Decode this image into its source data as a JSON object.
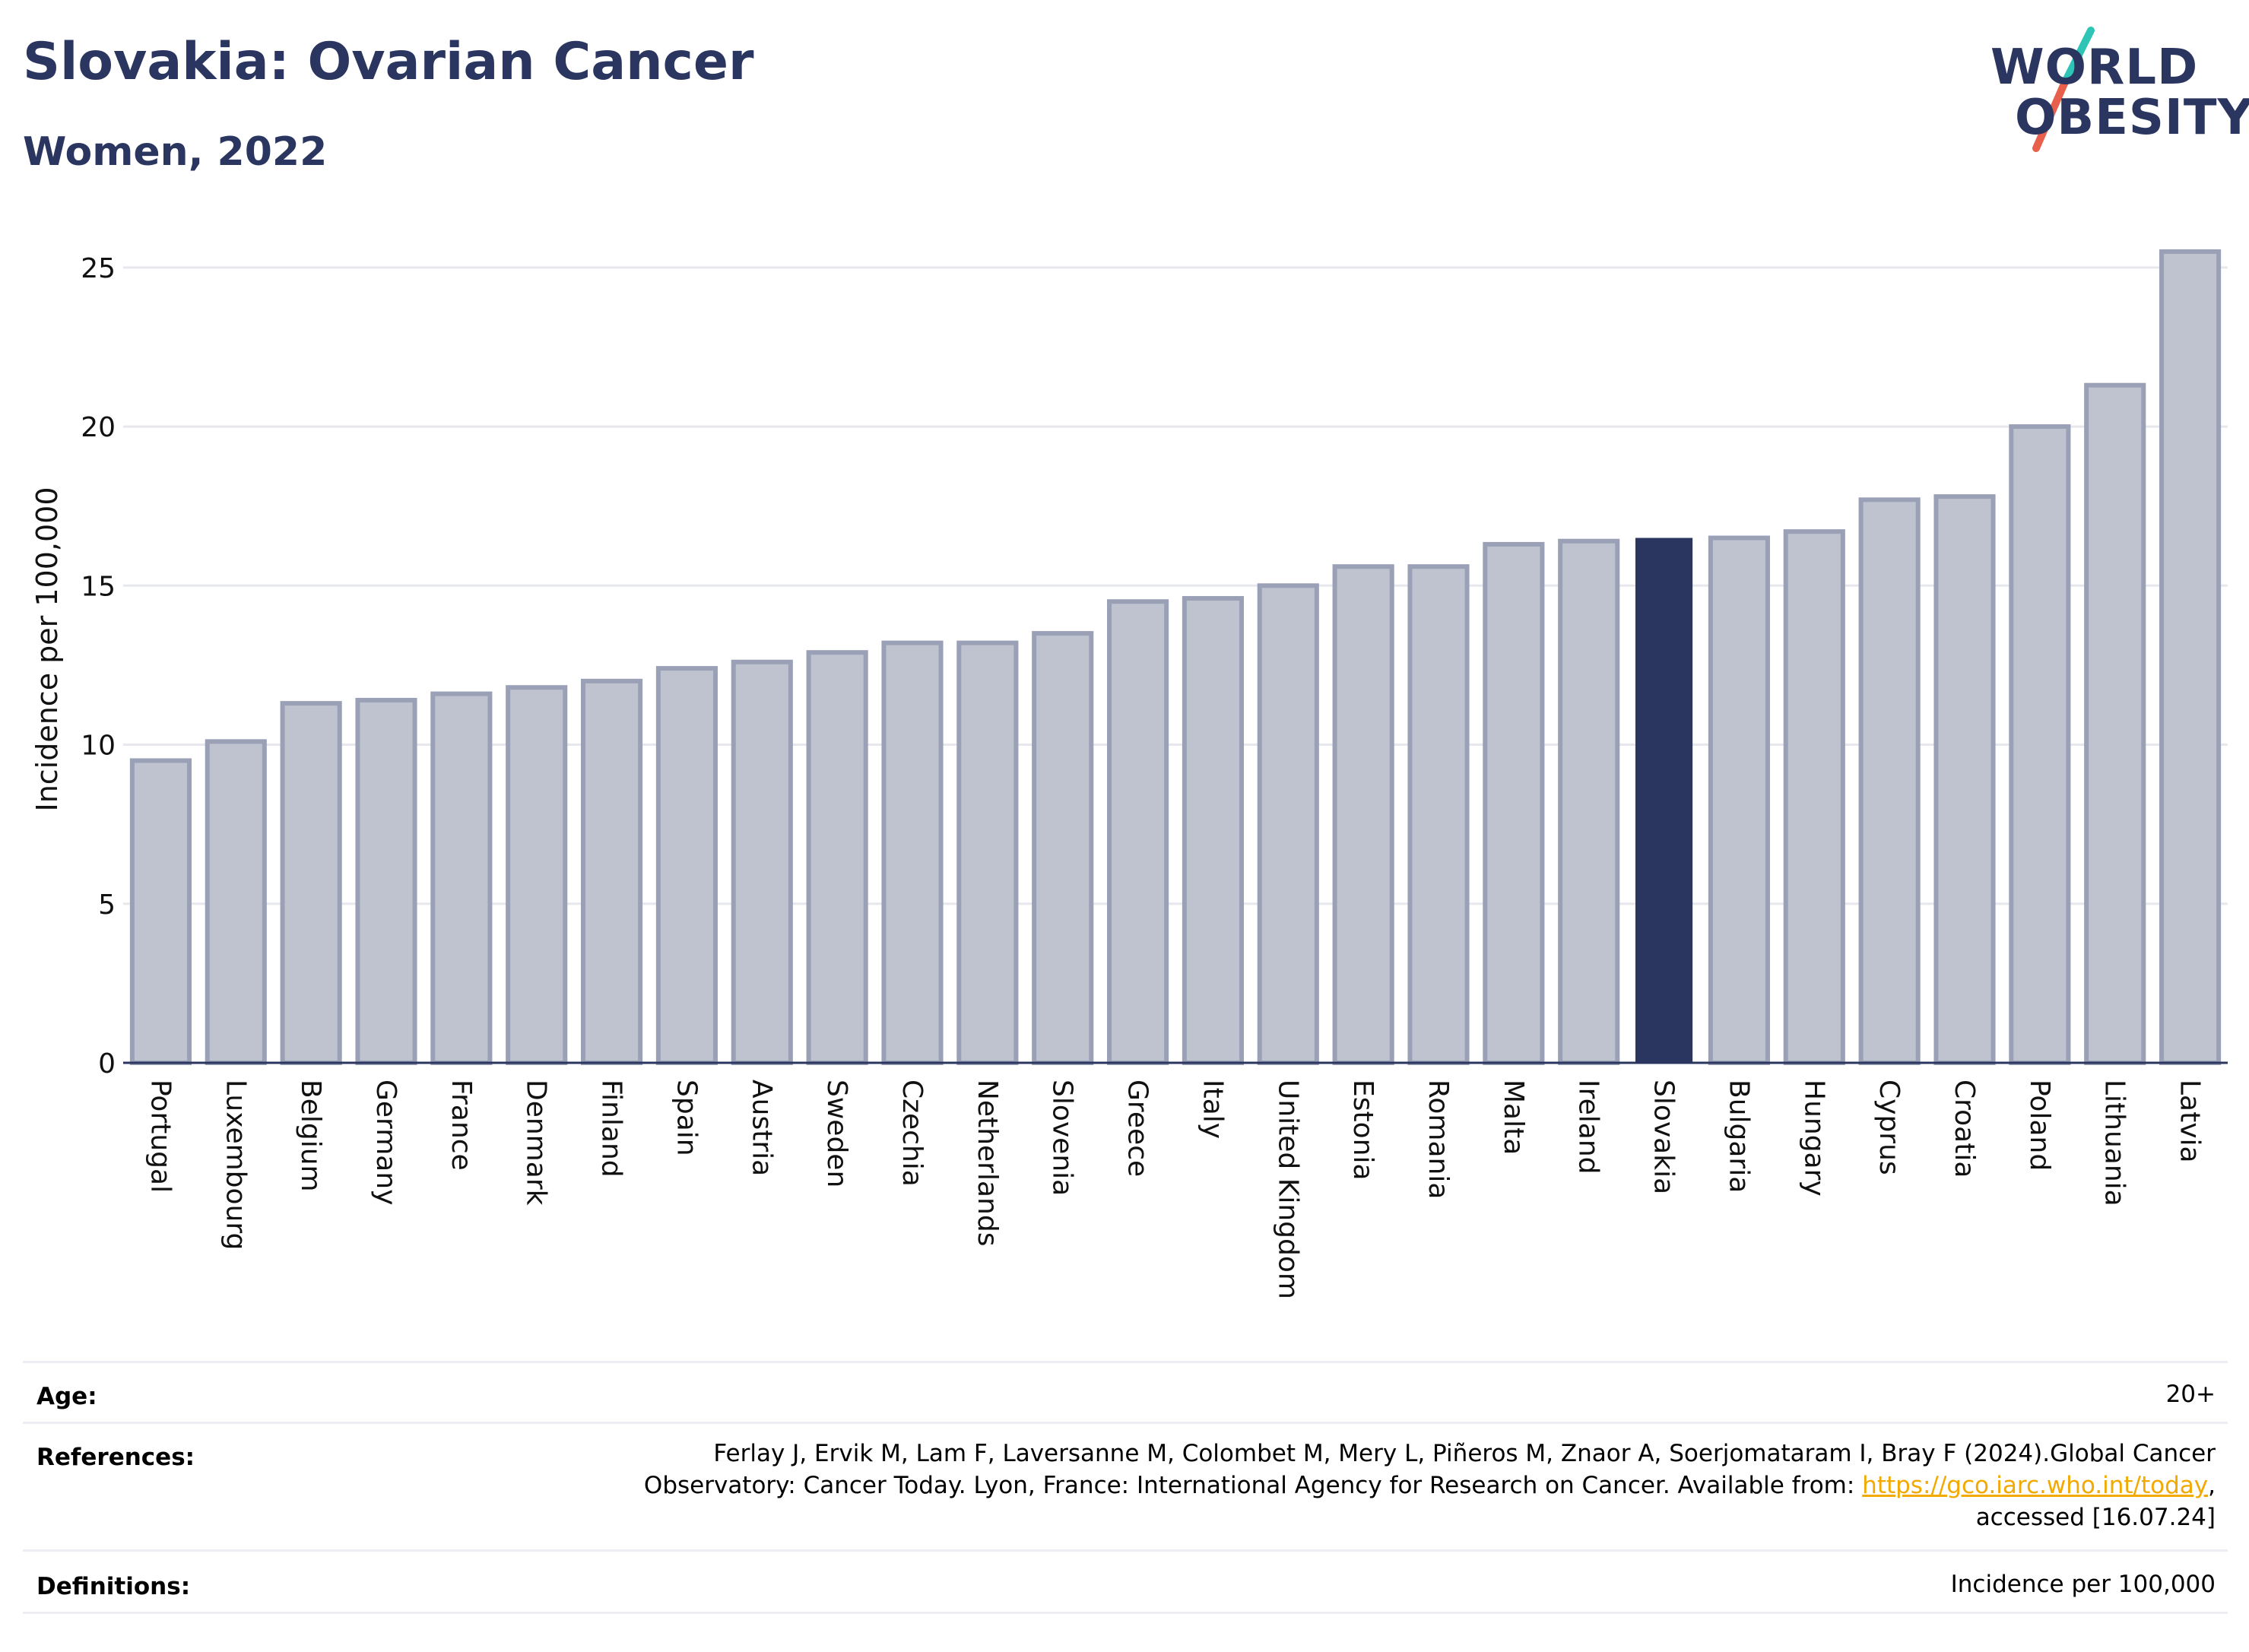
{
  "header": {
    "title": "Slovakia: Ovarian Cancer",
    "subtitle": "Women, 2022"
  },
  "logo": {
    "line1": "WORLD",
    "line2": "OBESITY",
    "accent_colors": [
      "#2ec4b6",
      "#e8604c"
    ]
  },
  "chart_data": {
    "type": "bar",
    "ylabel": "Incidence per 100,000",
    "xlabel": "",
    "ylim": [
      0,
      26
    ],
    "yticks": [
      0,
      5,
      10,
      15,
      20,
      25
    ],
    "grid": true,
    "highlight": "Slovakia",
    "colors": {
      "bar": "#bfc3cf",
      "bar_edge": "#9aa0b6",
      "highlight": "#2a3560"
    },
    "categories": [
      "Portugal",
      "Luxembourg",
      "Belgium",
      "Germany",
      "France",
      "Denmark",
      "Finland",
      "Spain",
      "Austria",
      "Sweden",
      "Czechia",
      "Netherlands",
      "Slovenia",
      "Greece",
      "Italy",
      "United Kingdom",
      "Estonia",
      "Romania",
      "Malta",
      "Ireland",
      "Slovakia",
      "Bulgaria",
      "Hungary",
      "Cyprus",
      "Croatia",
      "Poland",
      "Lithuania",
      "Latvia"
    ],
    "values": [
      9.5,
      10.1,
      11.3,
      11.4,
      11.6,
      11.8,
      12.0,
      12.4,
      12.6,
      12.9,
      13.2,
      13.2,
      13.5,
      14.5,
      14.6,
      15.0,
      15.6,
      15.6,
      16.3,
      16.4,
      16.5,
      16.5,
      16.7,
      17.7,
      17.8,
      20.0,
      21.3,
      25.5
    ]
  },
  "info": {
    "age_label": "Age:",
    "age_value": "20+",
    "references_label": "References:",
    "references_line1": "Ferlay J, Ervik M, Lam F, Laversanne M, Colombet M, Mery L, Piñeros M, Znaor A, Soerjomataram I, Bray F (2024).Global Cancer",
    "references_line2_prefix": "Observatory: Cancer Today. Lyon, France: International Agency for Research on Cancer. Available from: ",
    "references_link": "https://gco.iarc.who.int/today",
    "references_line2_suffix": ",",
    "references_line3": "accessed [16.07.24]",
    "definitions_label": "Definitions:",
    "definitions_value": "Incidence per 100,000"
  }
}
